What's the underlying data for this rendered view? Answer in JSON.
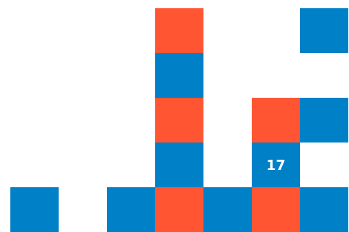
{
  "game": {
    "grid": {
      "columns": 7,
      "rows": 5
    },
    "colors": {
      "blue": "#0080C6",
      "orange": "#FF5533",
      "background": "#FFFFFF"
    },
    "tiles": [
      {
        "col": 3,
        "row": 0,
        "color": "orange"
      },
      {
        "col": 6,
        "row": 0,
        "color": "blue"
      },
      {
        "col": 3,
        "row": 1,
        "color": "blue"
      },
      {
        "col": 3,
        "row": 2,
        "color": "orange"
      },
      {
        "col": 5,
        "row": 2,
        "color": "orange"
      },
      {
        "col": 6,
        "row": 2,
        "color": "blue"
      },
      {
        "col": 3,
        "row": 3,
        "color": "blue"
      },
      {
        "col": 5,
        "row": 3,
        "color": "blue",
        "label": "17"
      },
      {
        "col": 0,
        "row": 4,
        "color": "blue"
      },
      {
        "col": 2,
        "row": 4,
        "color": "blue"
      },
      {
        "col": 3,
        "row": 4,
        "color": "orange"
      },
      {
        "col": 4,
        "row": 4,
        "color": "blue"
      },
      {
        "col": 5,
        "row": 4,
        "color": "orange"
      },
      {
        "col": 6,
        "row": 4,
        "color": "blue"
      }
    ]
  }
}
